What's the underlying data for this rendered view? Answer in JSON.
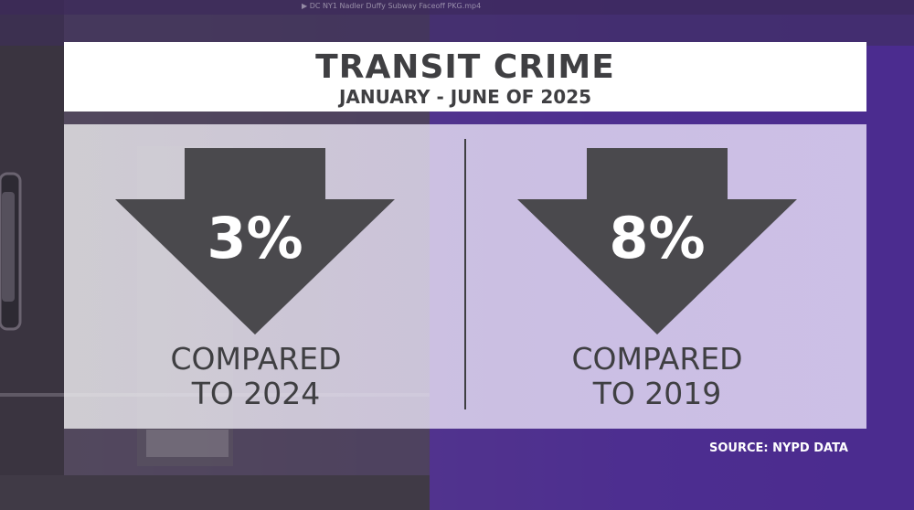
{
  "graphic": {
    "title": "TRANSIT CRIME",
    "subtitle": "JANUARY - JUNE OF 2025",
    "source": "SOURCE: NYPD DATA"
  },
  "stats": [
    {
      "percent": "3%",
      "direction": "down",
      "compared_line1": "COMPARED",
      "compared_line2": "TO 2024"
    },
    {
      "percent": "8%",
      "direction": "down",
      "compared_line1": "COMPARED",
      "compared_line2": "TO 2019"
    }
  ],
  "colors": {
    "arrow": "#4a494d",
    "text_dark": "#3f3f42",
    "background_purple": "#4e2f90",
    "title_box": "#ffffff"
  },
  "icons": [
    "down-arrow-icon",
    "down-arrow-icon"
  ]
}
